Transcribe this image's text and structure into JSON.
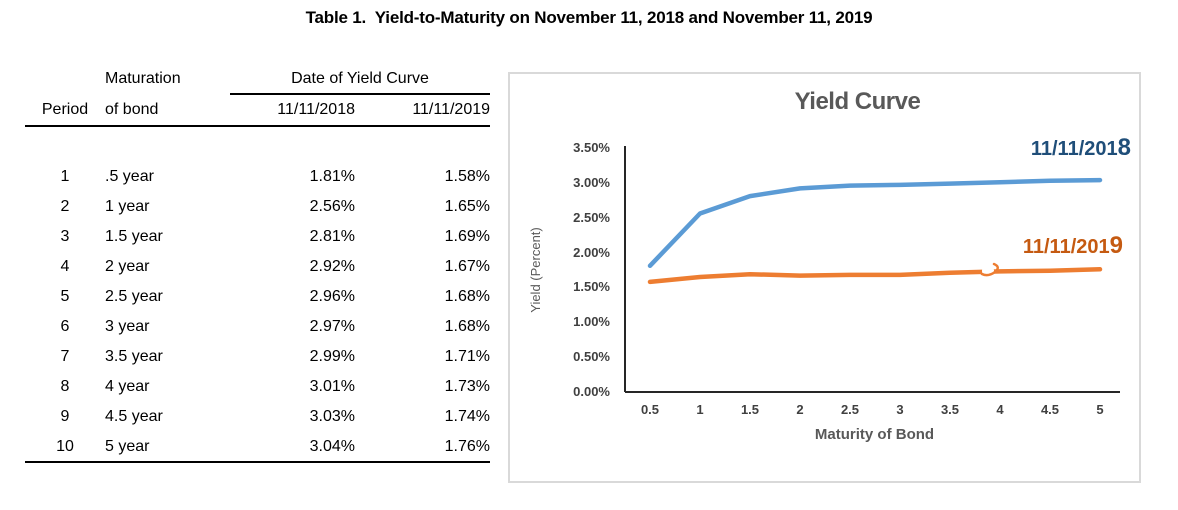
{
  "page": {
    "title": "Table 1.  Yield-to-Maturity on November 11, 2018 and November 11, 2019"
  },
  "table": {
    "header": {
      "period": "Period",
      "maturation_line1": "Maturation",
      "maturation_line2": "of bond",
      "date_group": "Date of Yield Curve",
      "col_2018": "11/11/2018",
      "col_2019": "11/11/2019"
    },
    "rows": [
      {
        "period": "1",
        "maturity": ".5 year",
        "y2018": "1.81%",
        "y2019": "1.58%"
      },
      {
        "period": "2",
        "maturity": "1 year",
        "y2018": "2.56%",
        "y2019": "1.65%"
      },
      {
        "period": "3",
        "maturity": "1.5 year",
        "y2018": "2.81%",
        "y2019": "1.69%"
      },
      {
        "period": "4",
        "maturity": "2 year",
        "y2018": "2.92%",
        "y2019": "1.67%"
      },
      {
        "period": "5",
        "maturity": "2.5 year",
        "y2018": "2.96%",
        "y2019": "1.68%"
      },
      {
        "period": "6",
        "maturity": "3 year",
        "y2018": "2.97%",
        "y2019": "1.68%"
      },
      {
        "period": "7",
        "maturity": "3.5 year",
        "y2018": "2.99%",
        "y2019": "1.71%"
      },
      {
        "period": "8",
        "maturity": "4 year",
        "y2018": "3.01%",
        "y2019": "1.73%"
      },
      {
        "period": "9",
        "maturity": "4.5 year",
        "y2018": "3.03%",
        "y2019": "1.74%"
      },
      {
        "period": "10",
        "maturity": "5 year",
        "y2018": "3.04%",
        "y2019": "1.76%"
      }
    ]
  },
  "chart": {
    "title": "Yield Curve",
    "y_axis_title": "Yield (Percent)",
    "x_axis_title": "Maturity of Bond",
    "y_ticks": [
      "3.50%",
      "3.00%",
      "2.50%",
      "2.00%",
      "1.50%",
      "1.00%",
      "0.50%",
      "0.00%"
    ],
    "x_ticks": [
      "0.5",
      "1",
      "1.5",
      "2",
      "2.5",
      "3",
      "3.5",
      "4",
      "4.5",
      "5"
    ],
    "label_2018": "11/11/2018",
    "label_2019": "11/11/2019",
    "colors": {
      "line_2018": "#5B9BD5",
      "line_2019": "#ED7D31",
      "label_2018": "#1F4E79",
      "label_2019": "#C55A11",
      "title_gray": "#595959",
      "tick_gray": "#404040",
      "axis_line": "#262626",
      "frame_border": "#D9D9D9"
    }
  },
  "chart_data": {
    "type": "line",
    "title": "Yield Curve",
    "xlabel": "Maturity of Bond",
    "ylabel": "Yield (Percent)",
    "x": [
      0.5,
      1,
      1.5,
      2,
      2.5,
      3,
      3.5,
      4,
      4.5,
      5
    ],
    "series": [
      {
        "name": "11/11/2018",
        "color": "#5B9BD5",
        "values": [
          1.81,
          2.56,
          2.81,
          2.92,
          2.96,
          2.97,
          2.99,
          3.01,
          3.03,
          3.04
        ]
      },
      {
        "name": "11/11/2019",
        "color": "#ED7D31",
        "values": [
          1.58,
          1.65,
          1.69,
          1.67,
          1.68,
          1.68,
          1.71,
          1.73,
          1.74,
          1.76
        ]
      }
    ],
    "ylim": [
      0,
      3.5
    ],
    "y_tick_step": 0.5,
    "xlim": [
      0.5,
      5
    ],
    "grid": false,
    "legend_position": "inline-labels-right"
  }
}
